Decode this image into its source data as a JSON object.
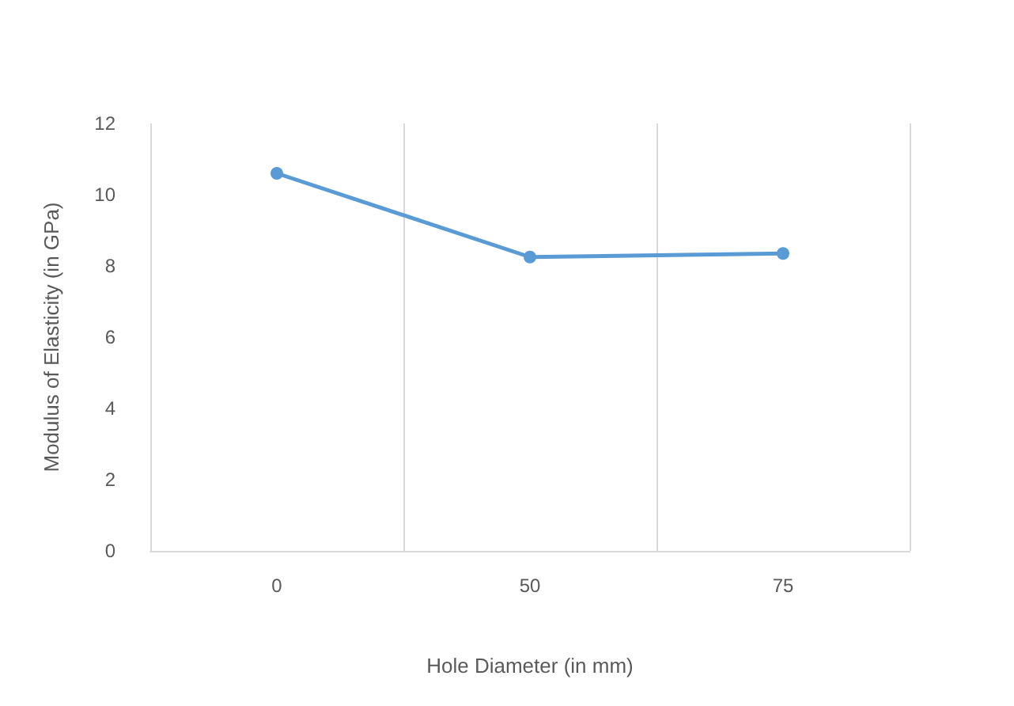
{
  "chart_data": {
    "type": "line",
    "xlabel": "Hole Diameter (in mm)",
    "ylabel": "Modulus of Elasticity (in GPa)",
    "categories": [
      "0",
      "50",
      "75"
    ],
    "series": [
      {
        "color": "#5b9bd5",
        "values": [
          10.6,
          8.25,
          8.35
        ]
      }
    ],
    "ylim": [
      0,
      12
    ],
    "yticks": [
      0,
      2,
      4,
      6,
      8,
      10,
      12
    ],
    "grid": "x",
    "marker": "circle",
    "line_style": "solid"
  }
}
